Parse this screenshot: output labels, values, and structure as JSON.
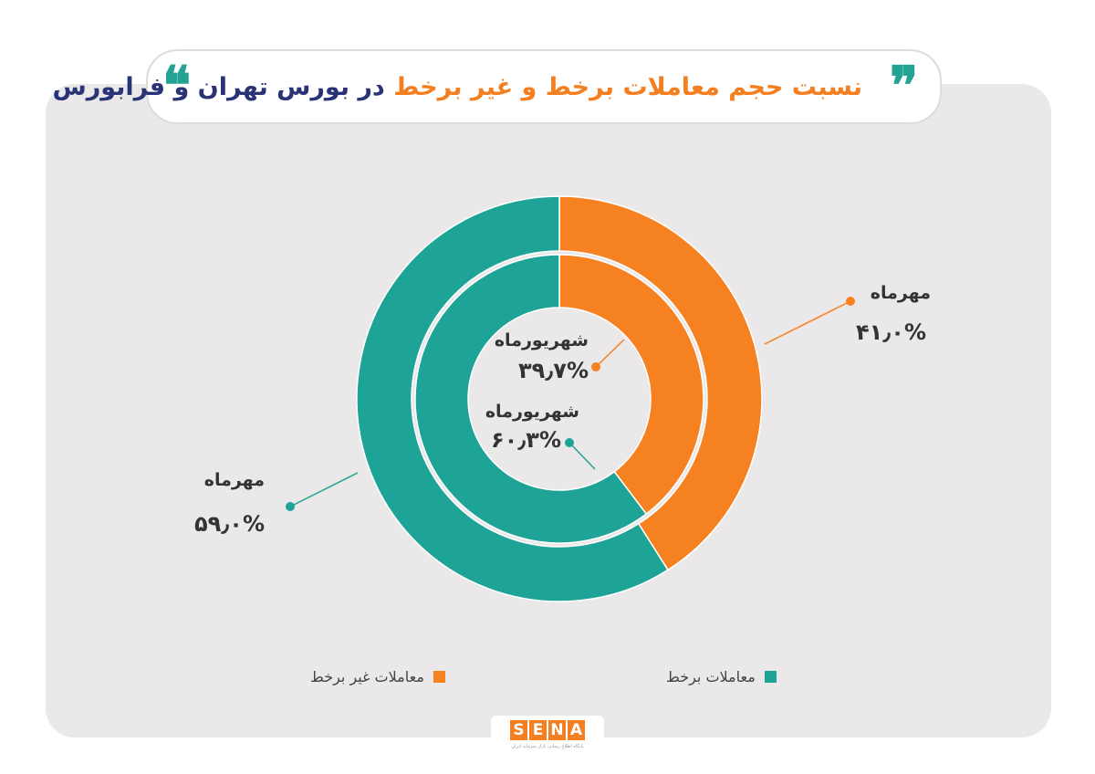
{
  "header": {
    "title_part1": "نسبت حجم معاملات برخط و غیر برخط",
    "title_part2": "در بورس تهران و فرابورس",
    "quote_open": "❞",
    "quote_close": "❝"
  },
  "colors": {
    "online": "#1ea397",
    "offline": "#f68121",
    "background": "#eae8e9"
  },
  "chart_data": {
    "type": "pie",
    "title": "نسبت حجم معاملات برخط و غیر برخط در بورس تهران و فرابورس",
    "rings": [
      {
        "ring": "outer",
        "period": "مهرماه",
        "slices": [
          {
            "series": "معاملات غیر برخط",
            "value": 41.0,
            "label": "۴۱٫۰%",
            "color": "#f68121"
          },
          {
            "series": "معاملات برخط",
            "value": 59.0,
            "label": "۵۹٫۰%",
            "color": "#1ea397"
          }
        ]
      },
      {
        "ring": "inner",
        "period": "شهریورماه",
        "slices": [
          {
            "series": "معاملات غیر برخط",
            "value": 39.7,
            "label": "۳۹٫۷%",
            "color": "#f68121"
          },
          {
            "series": "معاملات برخط",
            "value": 60.3,
            "label": "۶۰٫۳%",
            "color": "#1ea397"
          }
        ]
      }
    ],
    "legend": {
      "placement": "bottom",
      "entries": [
        {
          "name": "معاملات برخط",
          "color": "#1ea397"
        },
        {
          "name": "معاملات غیر برخط",
          "color": "#f68121"
        }
      ]
    }
  },
  "labels": {
    "outer_offline": {
      "period": "مهرماه",
      "pct": "۴۱٫۰%"
    },
    "outer_online": {
      "period": "مهرماه",
      "pct": "۵۹٫۰%"
    },
    "inner_offline": {
      "period": "شهریورماه",
      "pct": "۳۹٫۷%"
    },
    "inner_online": {
      "period": "شهریورماه",
      "pct": "۶۰٫۳%"
    }
  },
  "legend": {
    "online": "معاملات برخط",
    "offline": "معاملات غیر برخط"
  },
  "logo": {
    "letters": [
      "S",
      "E",
      "N",
      "A"
    ],
    "subtitle": "پایگاه اطلاع رسانی بازار سرمایه ایران"
  }
}
